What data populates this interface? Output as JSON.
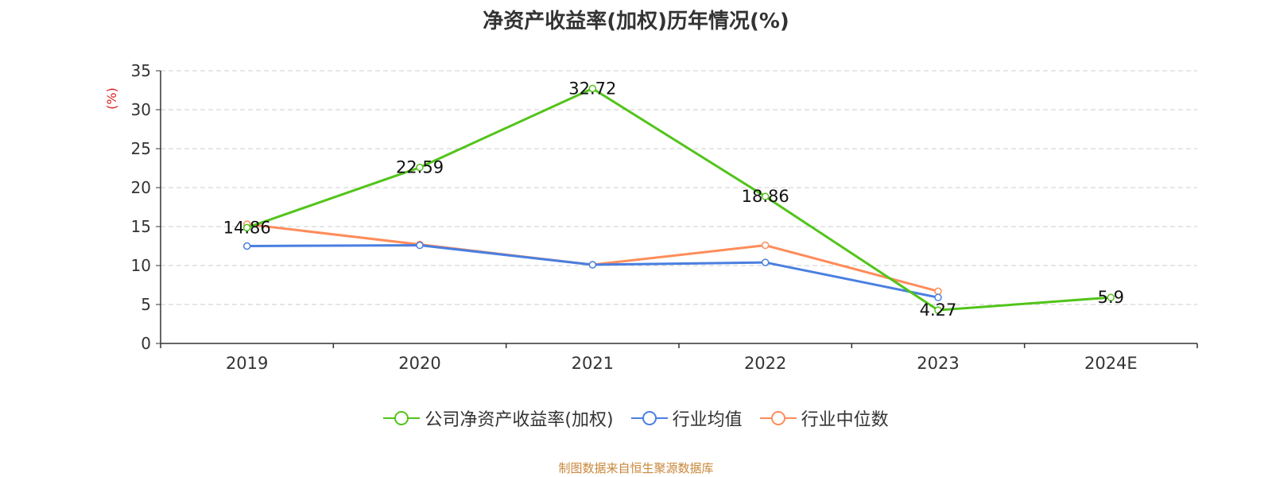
{
  "chart_data": {
    "type": "line",
    "title": "净资产收益率(加权)历年情况(%)",
    "ylabel": "(%)",
    "xlabel": "",
    "categories": [
      "2019",
      "2020",
      "2021",
      "2022",
      "2023",
      "2024E"
    ],
    "ylim": [
      0,
      35
    ],
    "yticks": [
      0,
      5,
      10,
      15,
      20,
      25,
      30,
      35
    ],
    "grid": true,
    "legend_position": "bottom",
    "series": [
      {
        "name": "公司净资产收益率(加权)",
        "color": "#52c41a",
        "values": [
          14.86,
          22.59,
          32.72,
          18.86,
          4.27,
          5.9
        ],
        "labels": [
          "14.86",
          "22.59",
          "32.72",
          "18.86",
          "4.27",
          "5.9"
        ]
      },
      {
        "name": "行业均值",
        "color": "#4a7fe0",
        "values": [
          12.5,
          12.6,
          10.1,
          10.4,
          5.9,
          null
        ],
        "labels": []
      },
      {
        "name": "行业中位数",
        "color": "#ff8c5a",
        "values": [
          15.3,
          12.7,
          10.1,
          12.6,
          6.7,
          null
        ],
        "labels": []
      }
    ]
  },
  "source_note": {
    "text": "制图数据来自恒生聚源数据库",
    "color": "#c8873a"
  },
  "ylabel_color": "#e02020"
}
